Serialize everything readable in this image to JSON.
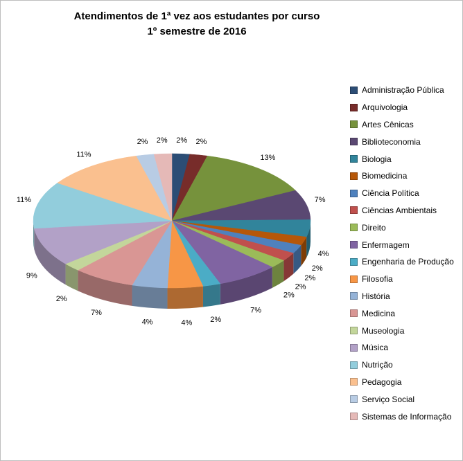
{
  "window": {
    "background": "#FFFFFF",
    "border_color": "#BDBDBD"
  },
  "chart_data": {
    "type": "pie",
    "style": "3d-pie",
    "title_line1": "Atendimentos de 1ª vez aos estudantes por curso",
    "title_line2": "1º semestre de 2016",
    "legend_position": "right",
    "data_labels": "percent-outside",
    "slices": [
      {
        "label": "Administração Pública",
        "value": 2,
        "percent_label": "2%",
        "color": "#2C4D75"
      },
      {
        "label": "Arquivologia",
        "value": 2,
        "percent_label": "2%",
        "color": "#772C2A"
      },
      {
        "label": "Artes Cênicas",
        "value": 13,
        "percent_label": "13%",
        "color": "#76923C"
      },
      {
        "label": "Biblioteconomia",
        "value": 7,
        "percent_label": "7%",
        "color": "#5A4872"
      },
      {
        "label": "Biologia",
        "value": 4,
        "percent_label": "4%",
        "color": "#31849B"
      },
      {
        "label": "Biomedicina",
        "value": 2,
        "percent_label": "2%",
        "color": "#B65708"
      },
      {
        "label": "Ciência Política",
        "value": 2,
        "percent_label": "2%",
        "color": "#4F81BD"
      },
      {
        "label": "Ciências Ambientais",
        "value": 2,
        "percent_label": "2%",
        "color": "#C0504D"
      },
      {
        "label": "Direito",
        "value": 2,
        "percent_label": "2%",
        "color": "#9BBB59"
      },
      {
        "label": "Enfermagem",
        "value": 7,
        "percent_label": "7%",
        "color": "#8064A2"
      },
      {
        "label": "Engenharia de Produção",
        "value": 2,
        "percent_label": "2%",
        "color": "#4BACC6"
      },
      {
        "label": "Filosofia",
        "value": 4,
        "percent_label": "4%",
        "color": "#F79646"
      },
      {
        "label": "História",
        "value": 4,
        "percent_label": "4%",
        "color": "#95B3D7"
      },
      {
        "label": "Medicina",
        "value": 7,
        "percent_label": "7%",
        "color": "#D99694"
      },
      {
        "label": "Museologia",
        "value": 2,
        "percent_label": "2%",
        "color": "#C3D69B"
      },
      {
        "label": "Música",
        "value": 9,
        "percent_label": "9%",
        "color": "#B2A1C7"
      },
      {
        "label": "Nutrição",
        "value": 11,
        "percent_label": "11%",
        "color": "#92CDDC"
      },
      {
        "label": "Pedagogia",
        "value": 11,
        "percent_label": "11%",
        "color": "#FAC08F"
      },
      {
        "label": "Serviço Social",
        "value": 2,
        "percent_label": "2%",
        "color": "#B8CCE4"
      },
      {
        "label": "Sistemas de Informação",
        "value": 2,
        "percent_label": "2%",
        "color": "#E5B9B7"
      }
    ]
  }
}
